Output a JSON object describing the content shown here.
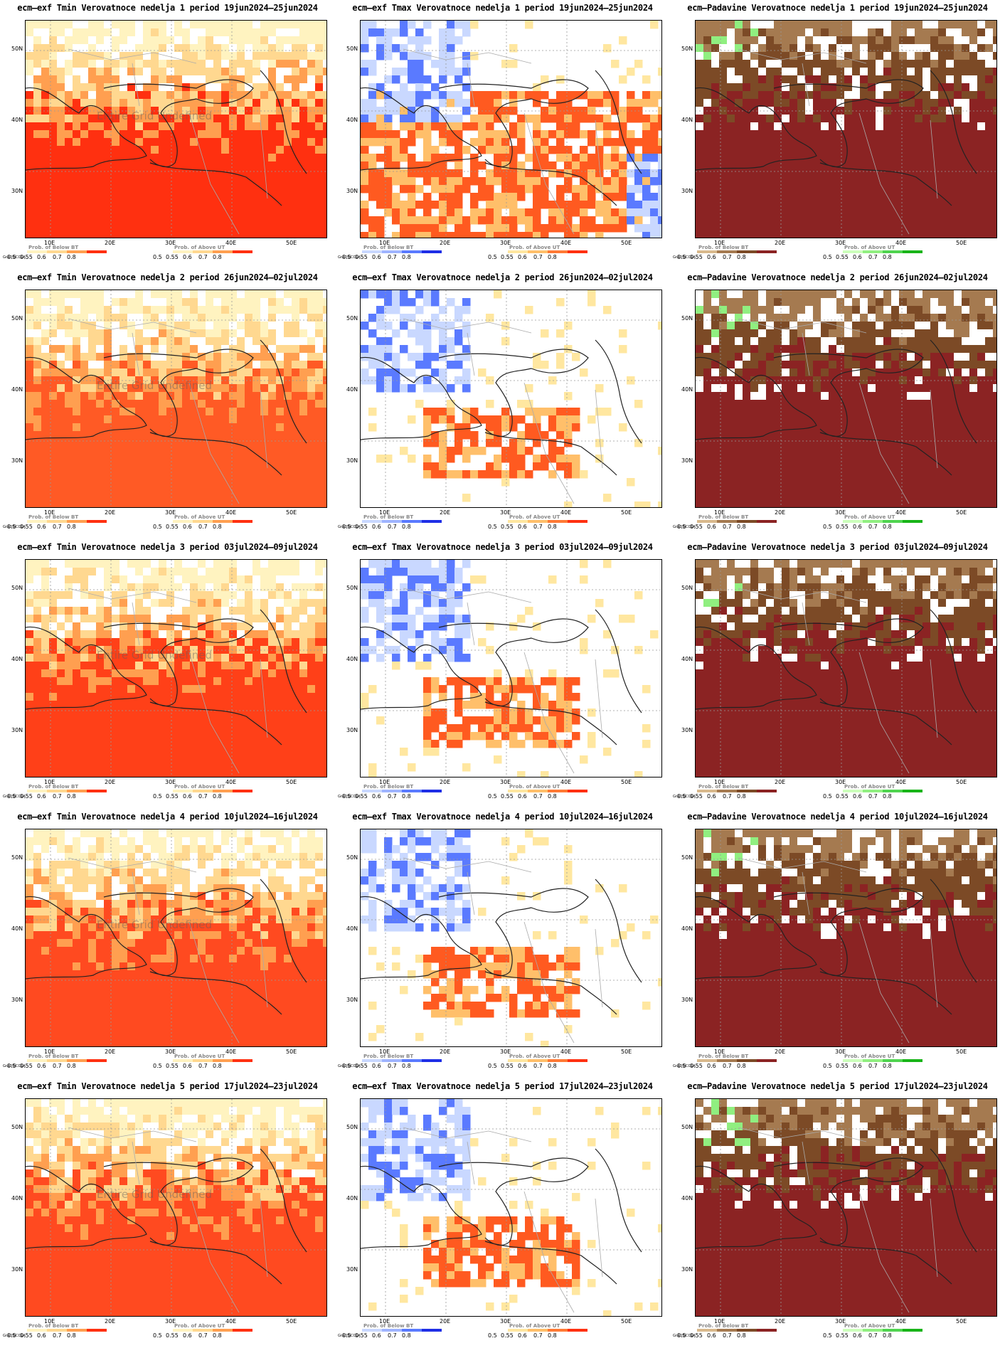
{
  "grads_label": "GrADS/COLA",
  "legend": {
    "below_title": "Prob. of Below BT",
    "above_title": "Prob. of Above UT",
    "ticks": [
      "0.5",
      "0.55",
      "0.6",
      "0.7",
      "0.8"
    ],
    "colors": {
      "tmin_below": [
        "#ffffff",
        "#fff3c0",
        "#ffd890",
        "#ff9f50",
        "#ff3010"
      ],
      "tmin_above": [
        "#ffffff",
        "#fff3c0",
        "#ffd890",
        "#ff9f50",
        "#ff3010"
      ],
      "tmax_below": [
        "#ffffff",
        "#c9d8ff",
        "#9fb4ff",
        "#5a7aff",
        "#1e2ee6"
      ],
      "tmax_above": [
        "#ffffff",
        "#ffe7a0",
        "#ffbf6a",
        "#ff7a35",
        "#ff3010"
      ],
      "prec_below": [
        "#ffffff",
        "#d9b98c",
        "#a57a50",
        "#7c4a26",
        "#8b2323"
      ],
      "prec_above": [
        "#ffffff",
        "#ccffbb",
        "#90ef80",
        "#4fd44f",
        "#18b418"
      ]
    }
  },
  "axes": {
    "lat_labels": [
      "50N",
      "40N",
      "30N"
    ],
    "lon_labels": [
      "10E",
      "20E",
      "30E",
      "40E",
      "50E"
    ]
  },
  "undefined_label": "Entire Grid Undefined",
  "weeks": [
    {
      "label": "1",
      "period": "19jun2024—25jun2024"
    },
    {
      "label": "2",
      "period": "26jun2024—02jul2024"
    },
    {
      "label": "3",
      "period": "03jul2024—09jul2024"
    },
    {
      "label": "4",
      "period": "10jul2024—16jul2024"
    },
    {
      "label": "5",
      "period": "17jul2024—23jul2024"
    }
  ],
  "titles": [
    [
      "ecm—exf Tmin Verovatnoce nedelja 1 period 19jun2024—25jun2024",
      "ecm—exf Tmax Verovatnoce nedelja 1 period 19jun2024—25jun2024",
      "ecm—Padavine Verovatnoce nedelja 1 period 19jun2024—25jun2024"
    ],
    [
      "ecm—exf Tmin Verovatnoce nedelja 2 period 26jun2024—02jul2024",
      "ecm—exf Tmax Verovatnoce nedelja 2 period 26jun2024—02jul2024",
      "ecm—Padavine Verovatnoce nedelja 2 period 26jun2024—02jul2024"
    ],
    [
      "ecm—exf Tmin Verovatnoce nedelja 3 period 03jul2024—09jul2024",
      "ecm—exf Tmax Verovatnoce nedelja 3 period 03jul2024—09jul2024",
      "ecm—Padavine Verovatnoce nedelja 3 period 03jul2024—09jul2024"
    ],
    [
      "ecm—exf Tmin Verovatnoce nedelja 4 period 10jul2024—16jul2024",
      "ecm—exf Tmax Verovatnoce nedelja 4 period 10jul2024—16jul2024",
      "ecm—Padavine Verovatnoce nedelja 4 period 10jul2024—16jul2024"
    ],
    [
      "ecm—exf Tmin Verovatnoce nedelja 5 period 17jul2024—23jul2024",
      "ecm—exf Tmax Verovatnoce nedelja 5 period 17jul2024—23jul2024",
      "ecm—Padavine Verovatnoce nedelja 5 period 17jul2024—23jul2024"
    ]
  ],
  "map_fill": {
    "tmin": [
      "#ff3010",
      "#ff5a25",
      "#ff4018",
      "#ff4a20",
      "#ff4a20"
    ],
    "tmax_warm": "#ff5a20",
    "tmax_cold": "#8ea8ff",
    "prec_dry": "#8b2323",
    "prec_dry2": "#7c4a26",
    "prec_wet": "#90ef80"
  }
}
